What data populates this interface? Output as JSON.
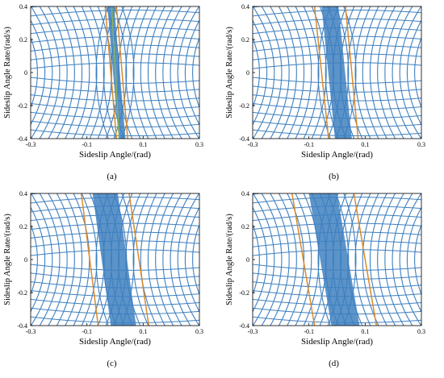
{
  "chart_data": [
    {
      "type": "phase_portrait",
      "panel_label": "(a)",
      "xlabel": "Sideslip Angle/(rad)",
      "ylabel": "Sideslip Angle Rate/(rad/s)",
      "xlim": [
        -0.3,
        0.3
      ],
      "ylim": [
        -0.4,
        0.4
      ],
      "xticks": [
        "-0.3",
        "-0.1",
        "0.1",
        "0.3"
      ],
      "yticks": [
        "0.4",
        "0.2",
        "0",
        "-0.2",
        "-0.4"
      ],
      "trajectory_color": "#3f80c0",
      "boundary_lines": [
        {
          "color": "#d98a2c",
          "points": [
            [
              -0.035,
              0.4
            ],
            [
              0.005,
              -0.4
            ]
          ]
        },
        {
          "color": "#d98a2c",
          "points": [
            [
              0.005,
              0.4
            ],
            [
              0.045,
              -0.4
            ]
          ]
        }
      ],
      "centerline": {
        "color": "#8fb84a",
        "points": [
          [
            -0.012,
            0.4
          ],
          [
            0.015,
            -0.4
          ]
        ]
      }
    },
    {
      "type": "phase_portrait",
      "panel_label": "(b)",
      "xlabel": "Sideslip Angle/(rad)",
      "ylabel": "Sideslip Angle Rate/(rad/s)",
      "xlim": [
        -0.3,
        0.3
      ],
      "ylim": [
        -0.4,
        0.4
      ],
      "xticks": [
        "-0.3",
        "-0.1",
        "0.1",
        "0.3"
      ],
      "yticks": [
        "0.4",
        "0.2",
        "0",
        "-0.2",
        "-0.4"
      ],
      "trajectory_color": "#3f80c0",
      "boundary_lines": [
        {
          "color": "#d98a2c",
          "points": [
            [
              -0.08,
              0.4
            ],
            [
              -0.03,
              -0.4
            ]
          ]
        },
        {
          "color": "#d98a2c",
          "points": [
            [
              0.03,
              0.4
            ],
            [
              0.075,
              -0.4
            ]
          ]
        }
      ]
    },
    {
      "type": "phase_portrait",
      "panel_label": "(c)",
      "xlabel": "Sideslip Angle/(rad)",
      "ylabel": "Sideslip Angle Rate/(rad/s)",
      "xlim": [
        -0.3,
        0.3
      ],
      "ylim": [
        -0.4,
        0.4
      ],
      "xticks": [
        "-0.3",
        "-0.1",
        "0.1",
        "0.3"
      ],
      "yticks": [
        "0.4",
        "0.2",
        "0",
        "-0.2",
        "-0.4"
      ],
      "trajectory_color": "#3f80c0",
      "boundary_lines": [
        {
          "color": "#d98a2c",
          "points": [
            [
              -0.12,
              0.4
            ],
            [
              -0.06,
              -0.4
            ]
          ]
        },
        {
          "color": "#d98a2c",
          "points": [
            [
              0.05,
              0.4
            ],
            [
              0.12,
              -0.4
            ]
          ]
        }
      ]
    },
    {
      "type": "phase_portrait",
      "panel_label": "(d)",
      "xlabel": "Sideslip Angle/(rad)",
      "ylabel": "Sideslip Angle Rate/(rad/s)",
      "xlim": [
        -0.3,
        0.3
      ],
      "ylim": [
        -0.4,
        0.4
      ],
      "xticks": [
        "-0.3",
        "-0.1",
        "0.1",
        "0.3"
      ],
      "yticks": [
        "0.4",
        "0.2",
        "0",
        "-0.2",
        "-0.4"
      ],
      "trajectory_color": "#3f80c0",
      "boundary_lines": [
        {
          "color": "#d98a2c",
          "points": [
            [
              -0.16,
              0.4
            ],
            [
              -0.08,
              -0.4
            ]
          ]
        },
        {
          "color": "#d98a2c",
          "points": [
            [
              0.06,
              0.4
            ],
            [
              0.14,
              -0.4
            ]
          ]
        }
      ]
    }
  ]
}
